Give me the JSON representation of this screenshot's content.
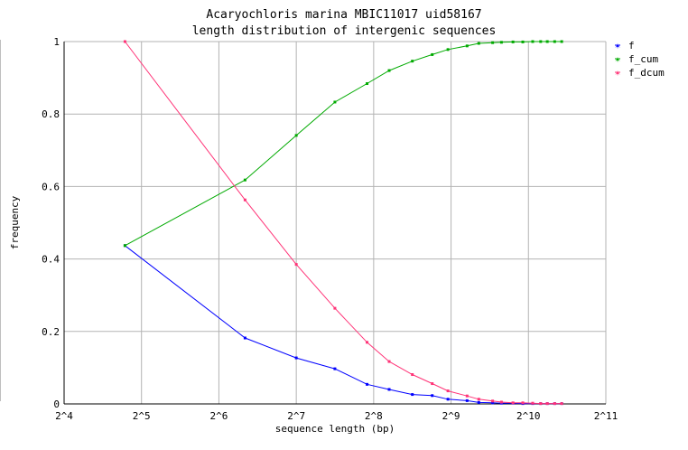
{
  "chart_data": {
    "type": "line",
    "title": "Acaryochloris marina MBIC11017 uid58167",
    "subtitle": "length distribution of intergenic sequences",
    "xlabel": "sequence length (bp)",
    "ylabel": "frequency",
    "x_scale": "log2",
    "xlim": [
      16,
      2048
    ],
    "ylim": [
      0,
      1
    ],
    "x_tick_labels": [
      "2^4",
      "2^5",
      "2^6",
      "2^7",
      "2^8",
      "2^9",
      "2^10",
      "2^11"
    ],
    "x_tick_values": [
      16,
      32,
      64,
      128,
      256,
      512,
      1024,
      2048
    ],
    "y_tick_labels": [
      "0",
      "0.2",
      "0.4",
      "0.6",
      "0.8",
      "1"
    ],
    "y_tick_values": [
      0,
      0.2,
      0.4,
      0.6,
      0.8,
      1
    ],
    "grid": true,
    "legend_position": "top-right",
    "x": [
      27.6,
      80.9,
      128,
      180.9,
      241.3,
      294.1,
      362,
      432.5,
      498,
      591.1,
      656.4,
      742.9,
      804.1,
      891.4,
      973.5,
      1063.6,
      1142.4,
      1212.1,
      1295.1,
      1379.5
    ],
    "series": [
      {
        "name": "f",
        "color": "#0000ff",
        "values": [
          0.437,
          0.182,
          0.127,
          0.097,
          0.054,
          0.04,
          0.026,
          0.023,
          0.013,
          0.009,
          0.004,
          0.003,
          0.002,
          0.002,
          0.001,
          0.001,
          0.001,
          0.001,
          0.001,
          0.001
        ]
      },
      {
        "name": "f_cum",
        "color": "#00aa00",
        "values": [
          0.437,
          0.618,
          0.741,
          0.833,
          0.884,
          0.92,
          0.946,
          0.964,
          0.978,
          0.988,
          0.995,
          0.997,
          0.998,
          0.999,
          0.999,
          1.0,
          1.0,
          1.0,
          1.0,
          1.0
        ]
      },
      {
        "name": "f_dcum",
        "color": "#ff3377",
        "values": [
          1.0,
          0.563,
          0.385,
          0.264,
          0.17,
          0.117,
          0.081,
          0.056,
          0.036,
          0.022,
          0.013,
          0.008,
          0.005,
          0.003,
          0.003,
          0.002,
          0.001,
          0.001,
          0.001,
          0.001
        ]
      }
    ]
  }
}
